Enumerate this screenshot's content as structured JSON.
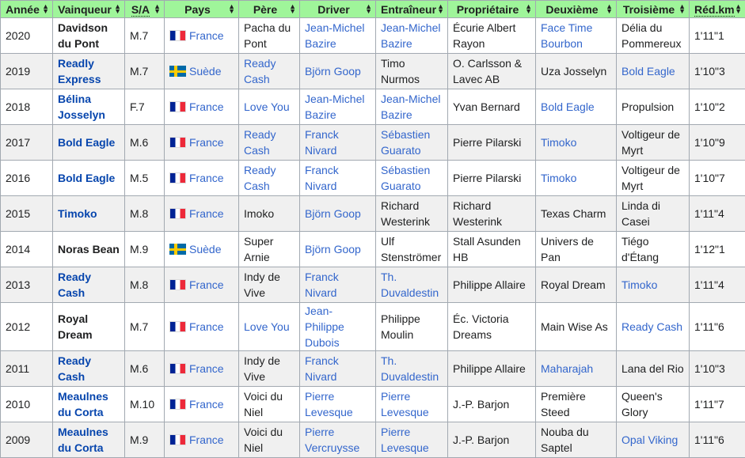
{
  "colors": {
    "header_bg": "#9ff59a",
    "link": "#3366cc",
    "row_alt": "#f0f0f0"
  },
  "headers": [
    "Année",
    "Vainqueur",
    "S/A",
    "Pays",
    "Père",
    "Driver",
    "Entraîneur",
    "Propriétaire",
    "Deuxième",
    "Troisième",
    "Réd.km"
  ],
  "rows": [
    {
      "cells": [
        [
          "2020",
          0
        ],
        [
          "Davidson du Pont",
          0
        ],
        [
          "M.7",
          0
        ],
        [
          "France",
          1,
          "fr"
        ],
        [
          "Pacha du Pont",
          0
        ],
        [
          "Jean-Michel Bazire",
          1
        ],
        [
          "Jean-Michel Bazire",
          1
        ],
        [
          "Écurie Albert Rayon",
          0
        ],
        [
          "Face Time Bourbon",
          1
        ],
        [
          "Délia du Pommereux",
          0
        ],
        [
          "1'11\"1",
          0
        ]
      ]
    },
    {
      "cells": [
        [
          "2019",
          0
        ],
        [
          "Readly Express",
          1
        ],
        [
          "M.7",
          0
        ],
        [
          "Suède",
          1,
          "se"
        ],
        [
          "Ready Cash",
          1
        ],
        [
          "Björn Goop",
          1
        ],
        [
          "Timo Nurmos",
          0
        ],
        [
          "O. Carlsson & Lavec AB",
          0
        ],
        [
          "Uza Josselyn",
          0
        ],
        [
          "Bold Eagle",
          1
        ],
        [
          "1'10\"3",
          0
        ]
      ]
    },
    {
      "cells": [
        [
          "2018",
          0
        ],
        [
          "Bélina Josselyn",
          1
        ],
        [
          "F.7",
          0
        ],
        [
          "France",
          1,
          "fr"
        ],
        [
          "Love You",
          1
        ],
        [
          "Jean-Michel Bazire",
          1
        ],
        [
          "Jean-Michel Bazire",
          1
        ],
        [
          "Yvan Bernard",
          0
        ],
        [
          "Bold Eagle",
          1
        ],
        [
          "Propulsion",
          0
        ],
        [
          "1'10\"2",
          0
        ]
      ]
    },
    {
      "cells": [
        [
          "2017",
          0
        ],
        [
          "Bold Eagle",
          1
        ],
        [
          "M.6",
          0
        ],
        [
          "France",
          1,
          "fr"
        ],
        [
          "Ready Cash",
          1
        ],
        [
          "Franck Nivard",
          1
        ],
        [
          "Sébastien Guarato",
          1
        ],
        [
          "Pierre Pilarski",
          0
        ],
        [
          "Timoko",
          1
        ],
        [
          "Voltigeur de Myrt",
          0
        ],
        [
          "1'10\"9",
          0
        ]
      ]
    },
    {
      "cells": [
        [
          "2016",
          0
        ],
        [
          "Bold Eagle",
          1
        ],
        [
          "M.5",
          0
        ],
        [
          "France",
          1,
          "fr"
        ],
        [
          "Ready Cash",
          1
        ],
        [
          "Franck Nivard",
          1
        ],
        [
          "Sébastien Guarato",
          1
        ],
        [
          "Pierre Pilarski",
          0
        ],
        [
          "Timoko",
          1
        ],
        [
          "Voltigeur de Myrt",
          0
        ],
        [
          "1'10\"7",
          0
        ]
      ]
    },
    {
      "cells": [
        [
          "2015",
          0
        ],
        [
          "Timoko",
          1
        ],
        [
          "M.8",
          0
        ],
        [
          "France",
          1,
          "fr"
        ],
        [
          "Imoko",
          0
        ],
        [
          "Björn Goop",
          1
        ],
        [
          "Richard Westerink",
          0
        ],
        [
          "Richard Westerink",
          0
        ],
        [
          "Texas Charm",
          0
        ],
        [
          "Linda di Casei",
          0
        ],
        [
          "1'11\"4",
          0
        ]
      ]
    },
    {
      "cells": [
        [
          "2014",
          0
        ],
        [
          "Noras Bean",
          0
        ],
        [
          "M.9",
          0
        ],
        [
          "Suède",
          1,
          "se"
        ],
        [
          "Super Arnie",
          0
        ],
        [
          "Björn Goop",
          1
        ],
        [
          "Ulf Stenströmer",
          0
        ],
        [
          "Stall Asunden HB",
          0
        ],
        [
          "Univers de Pan",
          0
        ],
        [
          "Tiégo d'Étang",
          0
        ],
        [
          "1'12\"1",
          0
        ]
      ]
    },
    {
      "cells": [
        [
          "2013",
          0
        ],
        [
          "Ready Cash",
          1
        ],
        [
          "M.8",
          0
        ],
        [
          "France",
          1,
          "fr"
        ],
        [
          "Indy de Vive",
          0
        ],
        [
          "Franck Nivard",
          1
        ],
        [
          "Th. Duvaldestin",
          1
        ],
        [
          "Philippe Allaire",
          0
        ],
        [
          "Royal Dream",
          0
        ],
        [
          "Timoko",
          1
        ],
        [
          "1'11\"4",
          0
        ]
      ]
    },
    {
      "cells": [
        [
          "2012",
          0
        ],
        [
          "Royal Dream",
          0
        ],
        [
          "M.7",
          0
        ],
        [
          "France",
          1,
          "fr"
        ],
        [
          "Love You",
          1
        ],
        [
          "Jean-Philippe Dubois",
          1
        ],
        [
          "Philippe Moulin",
          0
        ],
        [
          "Éc. Victoria Dreams",
          0
        ],
        [
          "Main Wise As",
          0
        ],
        [
          "Ready Cash",
          1
        ],
        [
          "1'11\"6",
          0
        ]
      ]
    },
    {
      "cells": [
        [
          "2011",
          0
        ],
        [
          "Ready Cash",
          1
        ],
        [
          "M.6",
          0
        ],
        [
          "France",
          1,
          "fr"
        ],
        [
          "Indy de Vive",
          0
        ],
        [
          "Franck Nivard",
          1
        ],
        [
          "Th. Duvaldestin",
          1
        ],
        [
          "Philippe Allaire",
          0
        ],
        [
          "Maharajah",
          1
        ],
        [
          "Lana del Rio",
          0
        ],
        [
          "1'10\"3",
          0
        ]
      ]
    },
    {
      "cells": [
        [
          "2010",
          0
        ],
        [
          "Meaulnes du Corta",
          1
        ],
        [
          "M.10",
          0
        ],
        [
          "France",
          1,
          "fr"
        ],
        [
          "Voici du Niel",
          0
        ],
        [
          "Pierre Levesque",
          1
        ],
        [
          "Pierre Levesque",
          1
        ],
        [
          "J.-P. Barjon",
          0
        ],
        [
          "Première Steed",
          0
        ],
        [
          "Queen's Glory",
          0
        ],
        [
          "1'11\"7",
          0
        ]
      ]
    },
    {
      "cells": [
        [
          "2009",
          0
        ],
        [
          "Meaulnes du Corta",
          1
        ],
        [
          "M.9",
          0
        ],
        [
          "France",
          1,
          "fr"
        ],
        [
          "Voici du Niel",
          0
        ],
        [
          "Pierre Vercruysse",
          1
        ],
        [
          "Pierre Levesque",
          1
        ],
        [
          "J.-P. Barjon",
          0
        ],
        [
          "Nouba du Saptel",
          0
        ],
        [
          "Opal Viking",
          1
        ],
        [
          "1'11\"6",
          0
        ]
      ]
    }
  ]
}
